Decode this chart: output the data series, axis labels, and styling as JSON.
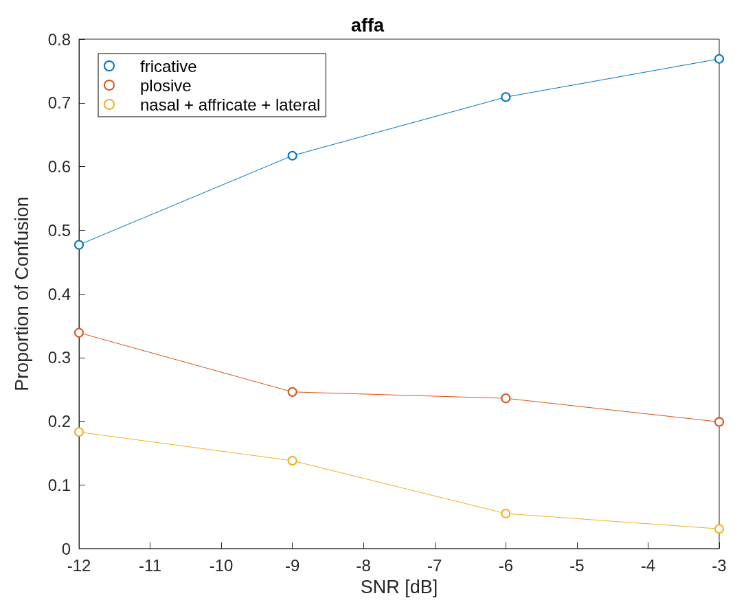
{
  "chart_data": {
    "type": "line",
    "title": "affa",
    "xlabel": "SNR [dB]",
    "ylabel": "Proportion of Confusion",
    "x": [
      -12,
      -9,
      -6,
      -3
    ],
    "series": [
      {
        "name": "fricative",
        "color": "#0072bd",
        "values": [
          0.477,
          0.617,
          0.709,
          0.769
        ]
      },
      {
        "name": "plosive",
        "color": "#d95319",
        "values": [
          0.339,
          0.246,
          0.236,
          0.199
        ]
      },
      {
        "name": "nasal + affricate + lateral",
        "color": "#edb120",
        "values": [
          0.183,
          0.138,
          0.055,
          0.031
        ]
      }
    ],
    "xlim": [
      -12,
      -3
    ],
    "xticks": [
      -12,
      -11,
      -10,
      -9,
      -8,
      -7,
      -6,
      -5,
      -4,
      -3
    ],
    "ylim": [
      0,
      0.8
    ],
    "yticks": [
      0,
      0.1,
      0.2,
      0.3,
      0.4,
      0.5,
      0.6,
      0.7,
      0.8
    ],
    "grid": false,
    "legend": "top left",
    "marker": "circle",
    "line_style": "solid"
  }
}
